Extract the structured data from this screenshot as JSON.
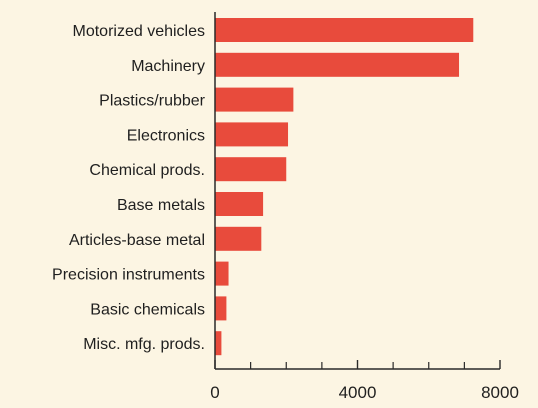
{
  "chart_data": {
    "type": "bar",
    "orientation": "horizontal",
    "categories": [
      "Motorized vehicles",
      "Machinery",
      "Plastics/rubber",
      "Electronics",
      "Chemical prods.",
      "Base metals",
      "Articles-base metal",
      "Precision instruments",
      "Basic chemicals",
      "Misc. mfg. prods."
    ],
    "values": [
      7250,
      6850,
      2200,
      2050,
      2000,
      1350,
      1300,
      380,
      320,
      180
    ],
    "xlim": [
      0,
      8000
    ],
    "x_ticks": [
      0,
      4000,
      8000
    ],
    "x_tick_labels": [
      "0",
      "4000",
      "8000"
    ],
    "x_minor_ticks": [
      1000,
      2000,
      3000,
      5000,
      6000,
      7000
    ],
    "grid": false,
    "bar_color": "#e84b3c",
    "axis_color": "#2a2a2a",
    "background_color": "#fcf5e3"
  }
}
